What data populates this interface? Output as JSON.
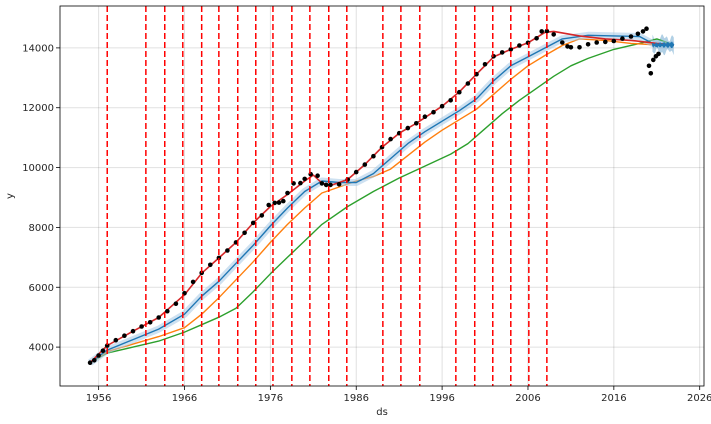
{
  "chart_data": {
    "type": "line",
    "title": "",
    "xlabel": "ds",
    "ylabel": "y",
    "xlim": [
      1951.5,
      2026.5
    ],
    "ylim": [
      2700,
      15400
    ],
    "grid": true,
    "x_ticks": [
      1956,
      1966,
      1976,
      1986,
      1996,
      2006,
      2016,
      2026
    ],
    "y_ticks": [
      4000,
      6000,
      8000,
      10000,
      12000,
      14000
    ],
    "changepoints": [
      1957,
      1961.5,
      1963.7,
      1965.8,
      1968,
      1970,
      1972.2,
      1974.3,
      1976.3,
      1978.5,
      1980.6,
      1982.8,
      1984.9,
      1989.1,
      1991.2,
      1993.4,
      1997.6,
      1999.8,
      2001.9,
      2004,
      2006.1,
      2008.2
    ],
    "actual_points": {
      "x": [
        1955,
        1955.5,
        1956,
        1956.5,
        1957,
        1958,
        1959,
        1960,
        1961,
        1962,
        1963,
        1964,
        1965,
        1966,
        1967,
        1968,
        1969,
        1970,
        1971,
        1972,
        1973,
        1974,
        1975,
        1975.8,
        1976.5,
        1977,
        1977.5,
        1978,
        1978.7,
        1979.5,
        1980,
        1980.7,
        1981.5,
        1982,
        1982.5,
        1983,
        1984,
        1985,
        1986,
        1987,
        1988,
        1989,
        1990,
        1991,
        1992,
        1993,
        1994,
        1995,
        1996,
        1997,
        1998,
        1999,
        2000,
        2001,
        2002,
        2003,
        2004,
        2005,
        2006,
        2007,
        2007.6,
        2008.2,
        2009,
        2010,
        2010.6,
        2011,
        2012,
        2013,
        2014,
        2015,
        2016,
        2017,
        2018,
        2018.8,
        2019.4,
        2019.8,
        2020.1,
        2020.3,
        2020.6,
        2020.9,
        2021.2
      ],
      "y": [
        3480,
        3560,
        3720,
        3880,
        4050,
        4230,
        4380,
        4530,
        4690,
        4830,
        4990,
        5200,
        5450,
        5800,
        6180,
        6480,
        6750,
        6980,
        7230,
        7500,
        7820,
        8150,
        8400,
        8750,
        8820,
        8830,
        8880,
        9150,
        9470,
        9480,
        9620,
        9780,
        9730,
        9470,
        9420,
        9420,
        9440,
        9600,
        9850,
        10100,
        10380,
        10680,
        10950,
        11150,
        11320,
        11480,
        11700,
        11850,
        12050,
        12250,
        12520,
        12810,
        13120,
        13450,
        13720,
        13850,
        13950,
        14080,
        14170,
        14320,
        14550,
        14560,
        14450,
        14180,
        14050,
        14020,
        14020,
        14120,
        14180,
        14200,
        14230,
        14310,
        14380,
        14470,
        14550,
        14640,
        13400,
        13150,
        13600,
        13720,
        13800
      ]
    },
    "series": [
      {
        "color": "#d62728",
        "x": [
          1955,
          1957,
          1960,
          1963,
          1966,
          1968,
          1970,
          1972,
          1974,
          1976,
          1978,
          1980,
          1981,
          1982,
          1983,
          1985,
          1987,
          1989,
          1991,
          1993,
          1996,
          1998,
          2000,
          2002,
          2004,
          2006,
          2008,
          2009,
          2012,
          2015,
          2018,
          2021,
          2023
        ],
        "y": [
          3480,
          4050,
          4530,
          4990,
          5750,
          6470,
          6980,
          7500,
          8150,
          8700,
          9100,
          9550,
          9750,
          9480,
          9400,
          9600,
          10100,
          10680,
          11150,
          11480,
          12050,
          12530,
          13120,
          13700,
          13950,
          14170,
          14520,
          14550,
          14400,
          14300,
          14250,
          14150,
          14100
        ]
      },
      {
        "color": "#1f77b4",
        "x": [
          1955,
          1957,
          1960,
          1963,
          1966,
          1968,
          1970,
          1972,
          1974,
          1976,
          1978,
          1980,
          1982,
          1984,
          1986,
          1988,
          1990,
          1992,
          1994,
          1996,
          1998,
          2000,
          2002,
          2004,
          2006,
          2008,
          2010,
          2013,
          2016,
          2019,
          2020.5,
          2023
        ],
        "y": [
          3480,
          3900,
          4250,
          4600,
          5100,
          5700,
          6200,
          6800,
          7400,
          8050,
          8650,
          9200,
          9550,
          9500,
          9500,
          9800,
          10300,
          10800,
          11200,
          11550,
          11900,
          12300,
          12900,
          13400,
          13700,
          14000,
          14300,
          14420,
          14400,
          14380,
          14150,
          14100
        ]
      },
      {
        "color": "#ff7f0e",
        "x": [
          1955,
          1957,
          1960,
          1963,
          1966,
          1968,
          1970,
          1972,
          1974,
          1976,
          1978,
          1980,
          1982,
          1984,
          1986,
          1988,
          1990,
          1992,
          1994,
          1996,
          1998,
          2000,
          2002,
          2004,
          2006,
          2008,
          2010,
          2012,
          2015,
          2018,
          2021,
          2023
        ],
        "y": [
          3480,
          3850,
          4100,
          4350,
          4650,
          5100,
          5650,
          6250,
          6850,
          7500,
          8100,
          8650,
          9150,
          9350,
          9550,
          9700,
          9950,
          10400,
          10850,
          11250,
          11600,
          11950,
          12450,
          12950,
          13400,
          13750,
          14080,
          14300,
          14250,
          14150,
          14100,
          14080
        ]
      },
      {
        "color": "#2ca02c",
        "x": [
          1955,
          1957,
          1960,
          1963,
          1966,
          1968,
          1970,
          1972,
          1974,
          1976,
          1978,
          1980,
          1982,
          1985,
          1988,
          1991,
          1994,
          1997,
          1999,
          2001,
          2003,
          2005,
          2007,
          2009,
          2011,
          2013,
          2016,
          2019,
          2021,
          2023
        ],
        "y": [
          3480,
          3800,
          4000,
          4200,
          4500,
          4750,
          5000,
          5300,
          5850,
          6450,
          7000,
          7550,
          8100,
          8700,
          9200,
          9650,
          10050,
          10450,
          10800,
          11300,
          11800,
          12250,
          12650,
          13050,
          13400,
          13650,
          13950,
          14150,
          14300,
          14100
        ]
      }
    ],
    "forecast_band": {
      "color": "#1f77b4",
      "x_range": [
        2020.5,
        2023
      ]
    }
  }
}
